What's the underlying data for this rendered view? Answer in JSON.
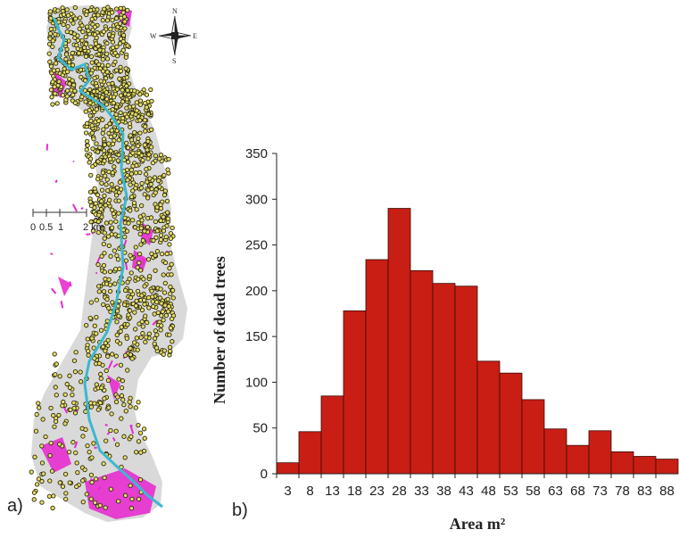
{
  "panel_labels": {
    "a": "a)",
    "b": "b)"
  },
  "map": {
    "scale_labels": [
      "0",
      "0.5",
      "1",
      "2 km"
    ],
    "compass": {
      "n": "N",
      "s": "S",
      "e": "E",
      "w": "W"
    },
    "colors": {
      "region": "#d9d9d9",
      "points": "#e6dc6a",
      "point_outline": "#2b2b10",
      "patches": "#e62ccf",
      "river": "#3bb8cf"
    }
  },
  "chart_data": {
    "type": "bar",
    "categories": [
      "3",
      "8",
      "13",
      "18",
      "23",
      "28",
      "33",
      "38",
      "43",
      "48",
      "53",
      "58",
      "63",
      "68",
      "73",
      "78",
      "83",
      "88"
    ],
    "values": [
      12,
      46,
      85,
      178,
      234,
      290,
      222,
      208,
      205,
      123,
      110,
      81,
      49,
      31,
      47,
      24,
      19,
      16
    ],
    "xlabel": "Area m²",
    "ylabel": "Number of dead trees",
    "ylim": [
      0,
      350
    ],
    "yticks": [
      0,
      50,
      100,
      150,
      200,
      250,
      300,
      350
    ],
    "bar_color": "#c81e14",
    "grid": false,
    "legend": "none"
  }
}
